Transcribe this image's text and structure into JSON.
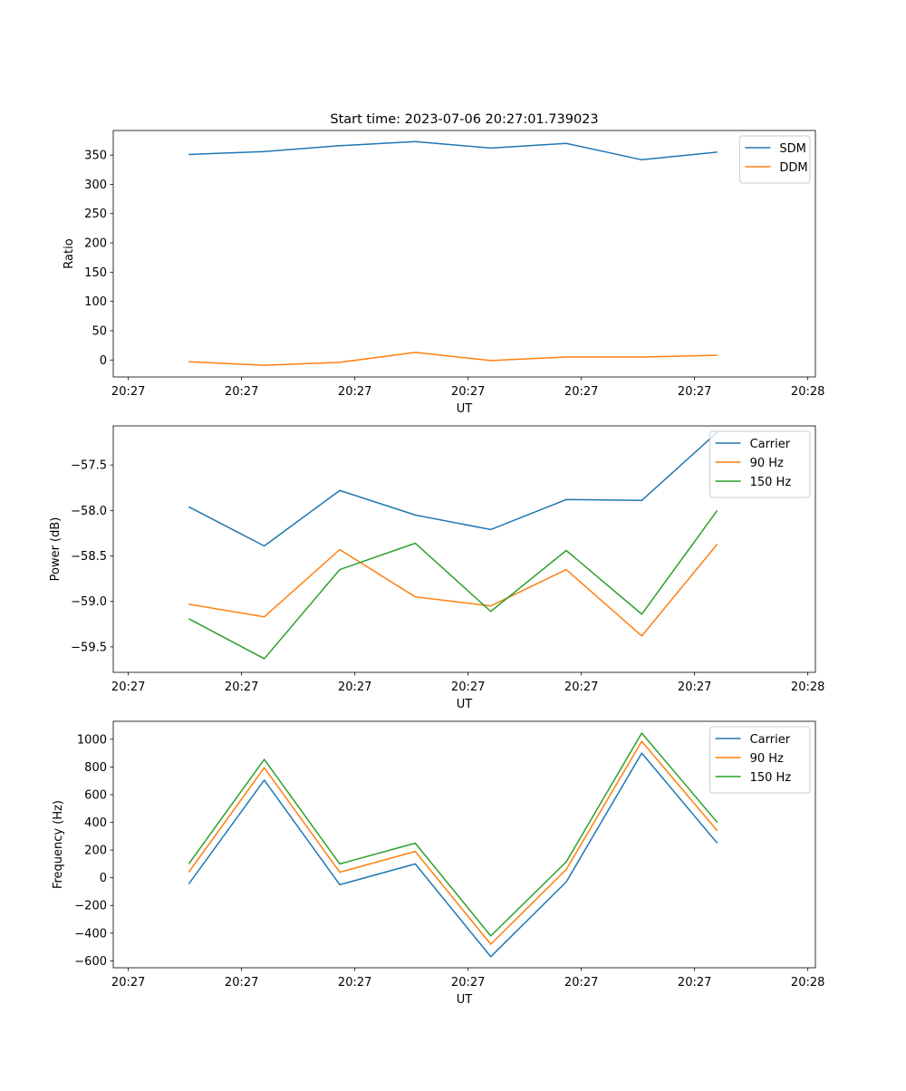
{
  "figure_title": "Start time: 2023-07-06 20:27:01.739023",
  "colors": {
    "blue": "#1f77b4",
    "orange": "#ff7f0e",
    "green": "#2ca02c"
  },
  "chart_data": [
    {
      "type": "line",
      "title": "Start time: 2023-07-06 20:27:01.739023",
      "xlabel": "UT",
      "ylabel": "Ratio",
      "xlim": [
        0,
        9.3
      ],
      "ylim": [
        -29,
        392
      ],
      "x_ticks": [
        0.2,
        1.7,
        3.2,
        4.7,
        6.2,
        7.7,
        9.2
      ],
      "x_tick_labels": [
        "20:27",
        "20:27",
        "20:27",
        "20:27",
        "20:27",
        "20:27",
        "20:28"
      ],
      "y_ticks": [
        0,
        50,
        100,
        150,
        200,
        250,
        300,
        350
      ],
      "y_tick_labels": [
        "0",
        "50",
        "100",
        "150",
        "200",
        "250",
        "300",
        "350"
      ],
      "x": [
        1,
        2,
        3,
        4,
        5,
        6,
        7,
        8
      ],
      "legend_location": "upper right",
      "series": [
        {
          "name": "SDM",
          "color": "#1f77b4",
          "values": [
            351,
            356,
            366,
            373,
            362,
            370,
            342,
            355
          ]
        },
        {
          "name": "DDM",
          "color": "#ff7f0e",
          "values": [
            -3,
            -9,
            -4,
            13,
            -1,
            5,
            5,
            8
          ]
        }
      ]
    },
    {
      "type": "line",
      "xlabel": "UT",
      "ylabel": "Power (dB)",
      "xlim": [
        0,
        9.3
      ],
      "ylim": [
        -59.78,
        -57.07
      ],
      "x_ticks": [
        0.2,
        1.7,
        3.2,
        4.7,
        6.2,
        7.7,
        9.2
      ],
      "x_tick_labels": [
        "20:27",
        "20:27",
        "20:27",
        "20:27",
        "20:27",
        "20:27",
        "20:28"
      ],
      "y_ticks": [
        -59.5,
        -59.0,
        -58.5,
        -58.0,
        -57.5
      ],
      "y_tick_labels": [
        "−59.5",
        "−59.0",
        "−58.5",
        "−58.0",
        "−57.5"
      ],
      "x": [
        1,
        2,
        3,
        4,
        5,
        6,
        7,
        8
      ],
      "legend_location": "upper right",
      "series": [
        {
          "name": "Carrier",
          "color": "#1f77b4",
          "values": [
            -57.96,
            -58.39,
            -57.78,
            -58.05,
            -58.21,
            -57.88,
            -57.89,
            -57.14
          ]
        },
        {
          "name": "90 Hz",
          "color": "#ff7f0e",
          "values": [
            -59.03,
            -59.17,
            -58.43,
            -58.95,
            -59.05,
            -58.65,
            -59.38,
            -58.37
          ]
        },
        {
          "name": "150 Hz",
          "color": "#2ca02c",
          "values": [
            -59.19,
            -59.63,
            -58.65,
            -58.36,
            -59.11,
            -58.44,
            -59.14,
            -58.0
          ]
        }
      ]
    },
    {
      "type": "line",
      "xlabel": "UT",
      "ylabel": "Frequency (Hz)",
      "xlim": [
        0,
        9.3
      ],
      "ylim": [
        -650,
        1130
      ],
      "x_ticks": [
        0.2,
        1.7,
        3.2,
        4.7,
        6.2,
        7.7,
        9.2
      ],
      "x_tick_labels": [
        "20:27",
        "20:27",
        "20:27",
        "20:27",
        "20:27",
        "20:27",
        "20:28"
      ],
      "y_ticks": [
        -600,
        -400,
        -200,
        0,
        200,
        400,
        600,
        800,
        1000
      ],
      "y_tick_labels": [
        "−600",
        "−400",
        "−200",
        "0",
        "200",
        "400",
        "600",
        "800",
        "1000"
      ],
      "x": [
        1,
        2,
        3,
        4,
        5,
        6,
        7,
        8
      ],
      "legend_location": "upper right",
      "series": [
        {
          "name": "Carrier",
          "color": "#1f77b4",
          "values": [
            -45,
            705,
            -50,
            100,
            -570,
            -30,
            900,
            250
          ]
        },
        {
          "name": "90 Hz",
          "color": "#ff7f0e",
          "values": [
            40,
            795,
            40,
            190,
            -480,
            60,
            985,
            340
          ]
        },
        {
          "name": "150 Hz",
          "color": "#2ca02c",
          "values": [
            100,
            855,
            100,
            250,
            -420,
            115,
            1045,
            400
          ]
        }
      ]
    }
  ]
}
